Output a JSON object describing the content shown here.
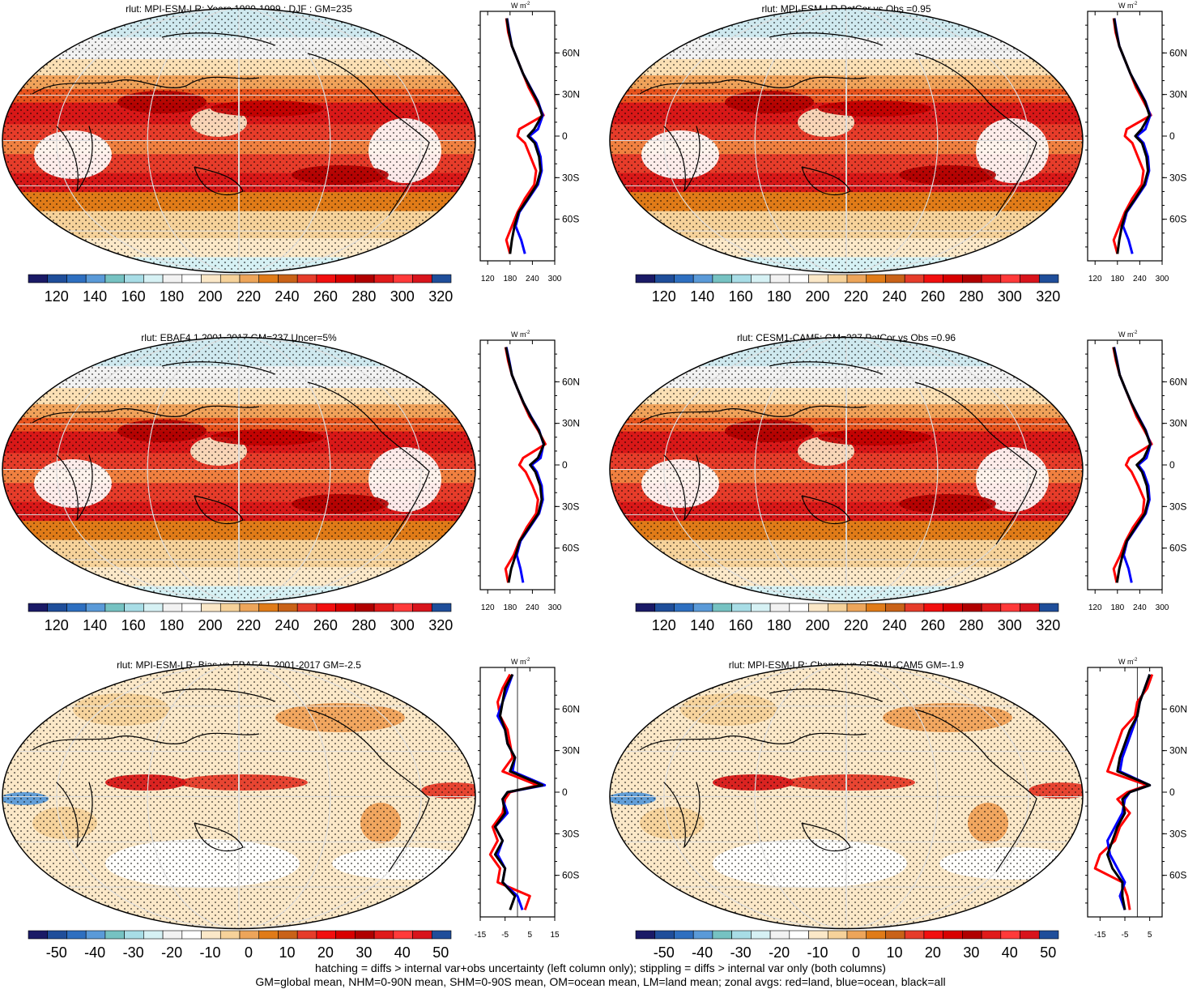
{
  "panels": [
    {
      "id": "p1",
      "title": "rlut: MPI-ESM-LR: Years 1980-1999 : DJF : GM=235",
      "kind": "abs",
      "zonal_xticks": [
        "120",
        "180",
        "240",
        "300"
      ],
      "zonal_yticks": [
        "60N",
        "30N",
        "0",
        "30S",
        "60S"
      ],
      "zonal_units": "W m",
      "zonal_units_sup": "-2"
    },
    {
      "id": "p2",
      "title": "rlut: MPI-ESM-LR PatCor vs Obs =0.95",
      "kind": "abs",
      "zonal_xticks": [
        "120",
        "180",
        "240",
        "300"
      ],
      "zonal_yticks": [
        "60N",
        "30N",
        "0",
        "30S",
        "60S"
      ],
      "zonal_units": "W m",
      "zonal_units_sup": "-2"
    },
    {
      "id": "p3",
      "title": "rlut: EBAF4.1 2001-2017 GM=237 Uncer=5%",
      "kind": "abs",
      "zonal_xticks": [
        "120",
        "180",
        "240",
        "300"
      ],
      "zonal_yticks": [
        "60N",
        "30N",
        "0",
        "30S",
        "60S"
      ],
      "zonal_units": "W m",
      "zonal_units_sup": "-2"
    },
    {
      "id": "p4",
      "title": "rlut: CESM1-CAM5: GM=237 PatCor vs Obs =0.96",
      "kind": "abs",
      "zonal_xticks": [
        "120",
        "180",
        "240",
        "300"
      ],
      "zonal_yticks": [
        "60N",
        "30N",
        "0",
        "30S",
        "60S"
      ],
      "zonal_units": "W m",
      "zonal_units_sup": "-2"
    },
    {
      "id": "p5",
      "title": "rlut: MPI-ESM-LR: Bias vs EBAF4.1 2001-2017 GM=-2.5",
      "kind": "diff",
      "zonal_xticks": [
        "-15",
        "-5",
        "5",
        "15"
      ],
      "zonal_yticks": [
        "60N",
        "30N",
        "0",
        "30S",
        "60S"
      ],
      "zonal_units": "W m",
      "zonal_units_sup": "-2"
    },
    {
      "id": "p6",
      "title": "rlut: MPI-ESM-LR: Change vs CESM1-CAM5 GM=-1.9",
      "kind": "diff",
      "zonal_xticks": [
        "-15",
        "-5",
        "5"
      ],
      "zonal_yticks": [
        "60N",
        "30N",
        "0",
        "30S",
        "60S"
      ],
      "zonal_units": "W m",
      "zonal_units_sup": "-2"
    }
  ],
  "colorbars": {
    "abs": {
      "labels": [
        "120",
        "140",
        "160",
        "180",
        "200",
        "220",
        "240",
        "260",
        "280",
        "300",
        "320"
      ],
      "colors": [
        "#1a1a66",
        "#1f4e9a",
        "#2e6fc0",
        "#5a9ad8",
        "#76c2c2",
        "#a8dde6",
        "#d6f1f4",
        "#f2f2f2",
        "#ffffff",
        "#fbe8c8",
        "#f6d29a",
        "#eda55a",
        "#e07b18",
        "#c96218",
        "#e63c2a",
        "#f20f0f",
        "#d80000",
        "#b00000",
        "#e01a1a",
        "#ff3a3a",
        "#d8141c",
        "#1f4e9a"
      ]
    },
    "diff": {
      "labels": [
        "-50",
        "-40",
        "-30",
        "-20",
        "-10",
        "0",
        "10",
        "20",
        "30",
        "40",
        "50"
      ],
      "colors": [
        "#1a1a66",
        "#1f4e9a",
        "#2e6fc0",
        "#5a9ad8",
        "#76c2c2",
        "#a8dde6",
        "#d6f1f4",
        "#f2f2f2",
        "#ffffff",
        "#fbe8c8",
        "#f6d29a",
        "#eda55a",
        "#e07b18",
        "#c96218",
        "#e63c2a",
        "#f20f0f",
        "#d80000",
        "#b00000",
        "#e01a1a",
        "#ff3a3a",
        "#d8141c",
        "#1f4e9a"
      ]
    }
  },
  "footer": {
    "line1": "hatching = diffs > internal var+obs uncertainty (left column only); stippling = diffs > internal var only (both columns)",
    "line2": "GM=global mean, NHM=0-90N mean, SHM=0-90S mean, OM=ocean mean, LM=land mean; zonal avgs: red=land, blue=ocean, black=all"
  },
  "chart_data": [
    {
      "type": "line",
      "title": "rlut: MPI-ESM-LR: Years 1980-1999 : DJF : GM=235",
      "xlabel": "W m-2",
      "ylabel": "",
      "xlim": [
        100,
        300
      ],
      "ylim": [
        -90,
        90
      ],
      "lat": [
        -85,
        -75,
        -65,
        -55,
        -45,
        -35,
        -25,
        -15,
        -5,
        0,
        5,
        15,
        25,
        35,
        45,
        55,
        65,
        75,
        85
      ],
      "series": [
        {
          "name": "land",
          "color": "#ff0000",
          "values": [
            180,
            170,
            185,
            200,
            220,
            245,
            250,
            235,
            220,
            200,
            205,
            270,
            250,
            230,
            215,
            200,
            185,
            175,
            170
          ]
        },
        {
          "name": "ocean",
          "color": "#0000ff",
          "values": [
            220,
            210,
            195,
            205,
            230,
            255,
            265,
            262,
            250,
            232,
            255,
            268,
            255,
            235,
            215,
            200,
            185,
            178,
            172
          ]
        },
        {
          "name": "all",
          "color": "#000000",
          "values": [
            180,
            185,
            192,
            203,
            228,
            252,
            262,
            258,
            246,
            228,
            245,
            266,
            254,
            234,
            215,
            200,
            185,
            177,
            171
          ]
        }
      ]
    },
    {
      "type": "line",
      "title": "rlut: MPI-ESM-LR PatCor vs Obs =0.95",
      "xlabel": "W m-2",
      "ylabel": "",
      "xlim": [
        100,
        300
      ],
      "ylim": [
        -90,
        90
      ],
      "lat": [
        -85,
        -75,
        -65,
        -55,
        -45,
        -35,
        -25,
        -15,
        -5,
        0,
        5,
        15,
        25,
        35,
        45,
        55,
        65,
        75,
        85
      ],
      "series": [
        {
          "name": "land",
          "color": "#ff0000",
          "values": [
            180,
            170,
            185,
            200,
            220,
            245,
            250,
            235,
            220,
            200,
            205,
            270,
            250,
            230,
            215,
            200,
            185,
            175,
            170
          ]
        },
        {
          "name": "ocean",
          "color": "#0000ff",
          "values": [
            220,
            210,
            195,
            205,
            230,
            255,
            265,
            262,
            250,
            232,
            255,
            268,
            255,
            235,
            215,
            200,
            185,
            178,
            172
          ]
        },
        {
          "name": "all",
          "color": "#000000",
          "values": [
            180,
            185,
            192,
            203,
            228,
            252,
            262,
            258,
            246,
            228,
            245,
            266,
            254,
            234,
            215,
            200,
            185,
            177,
            171
          ]
        }
      ]
    },
    {
      "type": "line",
      "title": "rlut: EBAF4.1 2001-2017 GM=237 Uncer=5%",
      "xlabel": "W m-2",
      "ylabel": "",
      "xlim": [
        100,
        300
      ],
      "ylim": [
        -90,
        90
      ],
      "lat": [
        -85,
        -75,
        -65,
        -55,
        -45,
        -35,
        -25,
        -15,
        -5,
        0,
        5,
        15,
        25,
        35,
        45,
        55,
        65,
        75,
        85
      ],
      "series": [
        {
          "name": "land",
          "color": "#ff0000",
          "values": [
            175,
            168,
            190,
            205,
            225,
            250,
            255,
            240,
            222,
            205,
            215,
            275,
            255,
            232,
            215,
            200,
            185,
            175,
            168
          ]
        },
        {
          "name": "ocean",
          "color": "#0000ff",
          "values": [
            215,
            208,
            198,
            208,
            233,
            258,
            268,
            265,
            252,
            238,
            262,
            270,
            258,
            236,
            216,
            200,
            185,
            178,
            170
          ]
        },
        {
          "name": "all",
          "color": "#000000",
          "values": [
            176,
            183,
            195,
            206,
            231,
            256,
            265,
            261,
            248,
            234,
            255,
            271,
            257,
            235,
            216,
            200,
            185,
            177,
            169
          ]
        }
      ]
    },
    {
      "type": "line",
      "title": "rlut: CESM1-CAM5: GM=237 PatCor vs Obs =0.96",
      "xlabel": "W m-2",
      "ylabel": "",
      "xlim": [
        100,
        300
      ],
      "ylim": [
        -90,
        90
      ],
      "lat": [
        -85,
        -75,
        -65,
        -55,
        -45,
        -35,
        -25,
        -15,
        -5,
        0,
        5,
        15,
        25,
        35,
        45,
        55,
        65,
        75,
        85
      ],
      "series": [
        {
          "name": "land",
          "color": "#ff0000",
          "values": [
            178,
            170,
            188,
            202,
            222,
            248,
            252,
            236,
            218,
            203,
            212,
            272,
            252,
            231,
            216,
            201,
            186,
            176,
            169
          ]
        },
        {
          "name": "ocean",
          "color": "#0000ff",
          "values": [
            218,
            210,
            197,
            206,
            231,
            256,
            266,
            263,
            250,
            236,
            258,
            269,
            256,
            236,
            217,
            201,
            186,
            179,
            171
          ]
        },
        {
          "name": "all",
          "color": "#000000",
          "values": [
            179,
            185,
            194,
            205,
            229,
            254,
            263,
            259,
            246,
            232,
            251,
            268,
            255,
            235,
            217,
            201,
            186,
            178,
            170
          ]
        }
      ]
    },
    {
      "type": "line",
      "title": "rlut: MPI-ESM-LR: Bias vs EBAF4.1 2001-2017 GM=-2.5",
      "xlabel": "W m-2",
      "ylabel": "",
      "xlim": [
        -15,
        15
      ],
      "ylim": [
        -90,
        90
      ],
      "lat": [
        -85,
        -75,
        -65,
        -55,
        -45,
        -35,
        -25,
        -15,
        -5,
        0,
        5,
        15,
        25,
        35,
        45,
        55,
        65,
        75,
        85
      ],
      "series": [
        {
          "name": "land",
          "color": "#ff0000",
          "values": [
            3,
            5,
            -8,
            -7,
            -11,
            -8,
            -10,
            -6,
            -5,
            -3,
            8,
            -6,
            -2,
            -3,
            -4,
            -7,
            -8,
            -6,
            -3
          ]
        },
        {
          "name": "ocean",
          "color": "#0000ff",
          "values": [
            2,
            0,
            -6,
            -5,
            -8,
            -6,
            -9,
            -4,
            -6,
            -4,
            11,
            -2,
            -1,
            -4,
            -5,
            -8,
            -6,
            -4,
            -2
          ]
        },
        {
          "name": "all",
          "color": "#000000",
          "values": [
            -3,
            -1,
            -6,
            -5,
            -9,
            -6,
            -9,
            -5,
            -6,
            -4,
            10,
            -3,
            -1,
            -4,
            -5,
            -7,
            -6,
            -5,
            -2
          ]
        }
      ]
    },
    {
      "type": "line",
      "title": "rlut: MPI-ESM-LR: Change vs CESM1-CAM5 GM=-1.9",
      "xlabel": "W m-2",
      "ylabel": "",
      "xlim": [
        -20,
        10
      ],
      "ylim": [
        -90,
        90
      ],
      "lat": [
        -85,
        -75,
        -65,
        -55,
        -45,
        -35,
        -25,
        -15,
        -5,
        0,
        5,
        15,
        25,
        35,
        45,
        55,
        65,
        75,
        85
      ],
      "series": [
        {
          "name": "land",
          "color": "#ff0000",
          "values": [
            -3,
            -4,
            -6,
            -17,
            -15,
            -9,
            -7,
            -3,
            -8,
            -4,
            4,
            -12,
            -10,
            -8,
            -6,
            -1,
            0,
            4,
            6
          ]
        },
        {
          "name": "ocean",
          "color": "#0000ff",
          "values": [
            -5,
            -7,
            -5,
            -8,
            -11,
            -12,
            -9,
            -6,
            -5,
            -3,
            5,
            -7,
            -6,
            -4,
            -2,
            0,
            1,
            3,
            5
          ]
        },
        {
          "name": "all",
          "color": "#000000",
          "values": [
            -5,
            -6,
            -6,
            -10,
            -12,
            -10,
            -8,
            -5,
            -6,
            -3,
            5,
            -8,
            -7,
            -5,
            -3,
            0,
            1,
            3,
            5
          ]
        }
      ]
    }
  ]
}
